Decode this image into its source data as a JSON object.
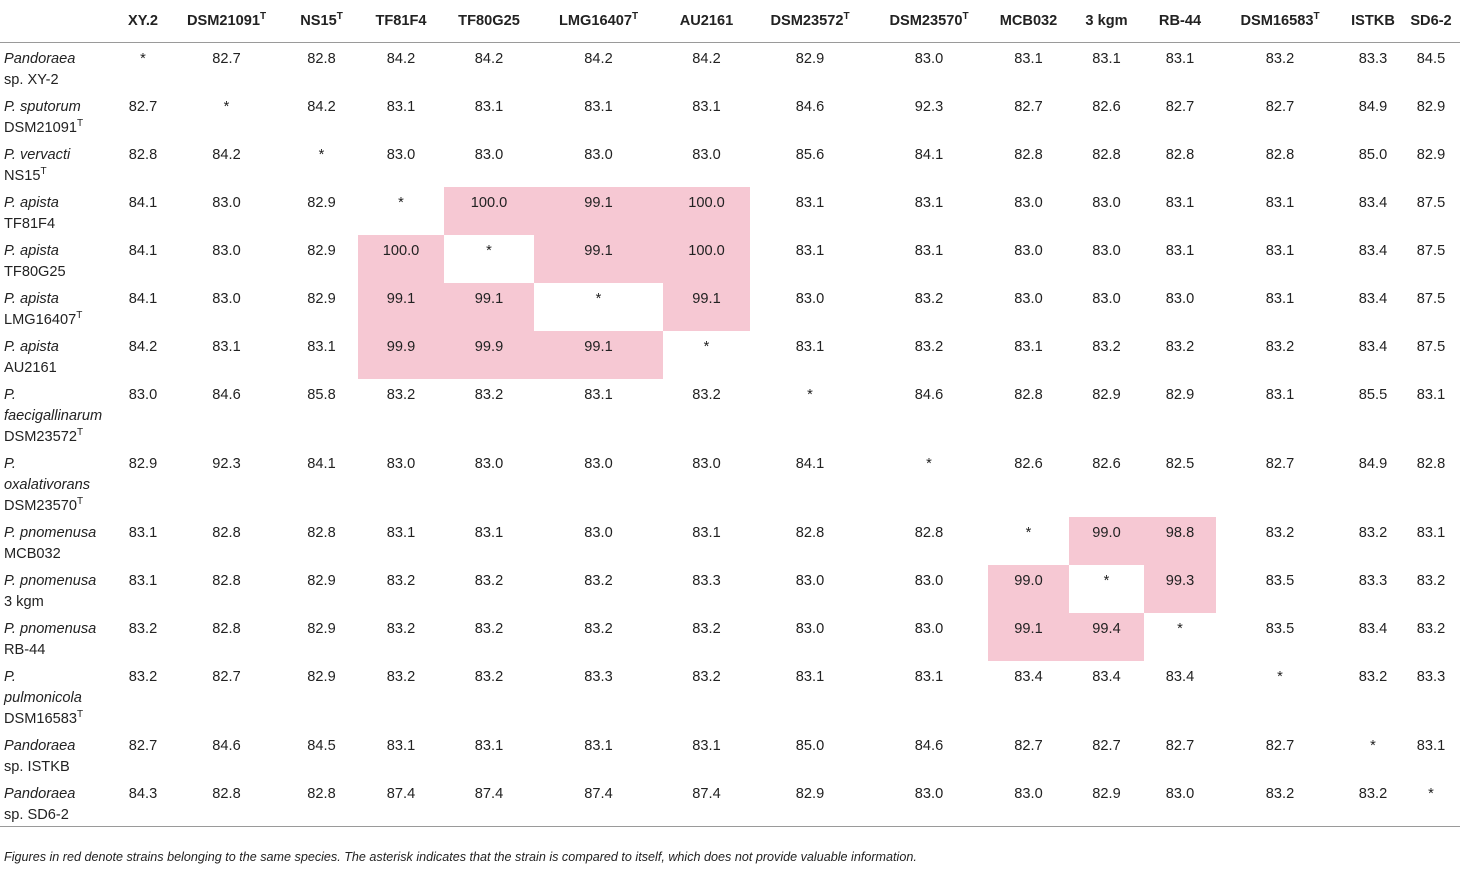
{
  "columns": [
    {
      "label": "XY.2",
      "sup": ""
    },
    {
      "label": "DSM21091",
      "sup": "T"
    },
    {
      "label": "NS15",
      "sup": "T"
    },
    {
      "label": "TF81F4",
      "sup": ""
    },
    {
      "label": "TF80G25",
      "sup": ""
    },
    {
      "label": "LMG16407",
      "sup": "T"
    },
    {
      "label": "AU2161",
      "sup": ""
    },
    {
      "label": "DSM23572",
      "sup": "T"
    },
    {
      "label": "DSM23570",
      "sup": "T"
    },
    {
      "label": "MCB032",
      "sup": ""
    },
    {
      "label": "3 kgm",
      "sup": ""
    },
    {
      "label": "RB-44",
      "sup": ""
    },
    {
      "label": "DSM16583",
      "sup": "T"
    },
    {
      "label": "ISTKB",
      "sup": ""
    },
    {
      "label": "SD6-2",
      "sup": ""
    }
  ],
  "rows": [
    {
      "lines": [
        {
          "italic": "Pandoraea",
          "plain": "",
          "sup": ""
        },
        {
          "italic": "",
          "plain": "sp. XY-2",
          "sup": ""
        }
      ],
      "values": [
        "*",
        "82.7",
        "82.8",
        "84.2",
        "84.2",
        "84.2",
        "84.2",
        "82.9",
        "83.0",
        "83.1",
        "83.1",
        "83.1",
        "83.2",
        "83.3",
        "84.5"
      ]
    },
    {
      "lines": [
        {
          "italic": "P. sputorum",
          "plain": "",
          "sup": ""
        },
        {
          "italic": "",
          "plain": "DSM21091",
          "sup": "T"
        }
      ],
      "values": [
        "82.7",
        "*",
        "84.2",
        "83.1",
        "83.1",
        "83.1",
        "83.1",
        "84.6",
        "92.3",
        "82.7",
        "82.6",
        "82.7",
        "82.7",
        "84.9",
        "82.9"
      ]
    },
    {
      "lines": [
        {
          "italic": "P. vervacti",
          "plain": "",
          "sup": ""
        },
        {
          "italic": "",
          "plain": "NS15",
          "sup": "T"
        }
      ],
      "values": [
        "82.8",
        "84.2",
        "*",
        "83.0",
        "83.0",
        "83.0",
        "83.0",
        "85.6",
        "84.1",
        "82.8",
        "82.8",
        "82.8",
        "82.8",
        "85.0",
        "82.9"
      ]
    },
    {
      "lines": [
        {
          "italic": "P. apista",
          "plain": "",
          "sup": ""
        },
        {
          "italic": "",
          "plain": "TF81F4",
          "sup": ""
        }
      ],
      "values": [
        "84.1",
        "83.0",
        "82.9",
        "*",
        "100.0",
        "99.1",
        "100.0",
        "83.1",
        "83.1",
        "83.0",
        "83.0",
        "83.1",
        "83.1",
        "83.4",
        "87.5"
      ]
    },
    {
      "lines": [
        {
          "italic": "P. apista",
          "plain": "",
          "sup": ""
        },
        {
          "italic": "",
          "plain": "TF80G25",
          "sup": ""
        }
      ],
      "values": [
        "84.1",
        "83.0",
        "82.9",
        "100.0",
        "*",
        "99.1",
        "100.0",
        "83.1",
        "83.1",
        "83.0",
        "83.0",
        "83.1",
        "83.1",
        "83.4",
        "87.5"
      ]
    },
    {
      "lines": [
        {
          "italic": "P. apista",
          "plain": "",
          "sup": ""
        },
        {
          "italic": "",
          "plain": "LMG16407",
          "sup": "T"
        }
      ],
      "values": [
        "84.1",
        "83.0",
        "82.9",
        "99.1",
        "99.1",
        "*",
        "99.1",
        "83.0",
        "83.2",
        "83.0",
        "83.0",
        "83.0",
        "83.1",
        "83.4",
        "87.5"
      ]
    },
    {
      "lines": [
        {
          "italic": "P. apista",
          "plain": "",
          "sup": ""
        },
        {
          "italic": "",
          "plain": "AU2161",
          "sup": ""
        }
      ],
      "values": [
        "84.2",
        "83.1",
        "83.1",
        "99.9",
        "99.9",
        "99.1",
        "*",
        "83.1",
        "83.2",
        "83.1",
        "83.2",
        "83.2",
        "83.2",
        "83.4",
        "87.5"
      ]
    },
    {
      "lines": [
        {
          "italic": "P.",
          "plain": "",
          "sup": ""
        },
        {
          "italic": "faecigallinarum",
          "plain": "",
          "sup": ""
        },
        {
          "italic": "",
          "plain": "DSM23572",
          "sup": "T"
        }
      ],
      "values": [
        "83.0",
        "84.6",
        "85.8",
        "83.2",
        "83.2",
        "83.1",
        "83.2",
        "*",
        "84.6",
        "82.8",
        "82.9",
        "82.9",
        "83.1",
        "85.5",
        "83.1"
      ]
    },
    {
      "lines": [
        {
          "italic": "P.",
          "plain": "",
          "sup": ""
        },
        {
          "italic": "oxalativorans",
          "plain": "",
          "sup": ""
        },
        {
          "italic": "",
          "plain": "DSM23570",
          "sup": "T"
        }
      ],
      "values": [
        "82.9",
        "92.3",
        "84.1",
        "83.0",
        "83.0",
        "83.0",
        "83.0",
        "84.1",
        "*",
        "82.6",
        "82.6",
        "82.5",
        "82.7",
        "84.9",
        "82.8"
      ]
    },
    {
      "lines": [
        {
          "italic": "P. pnomenusa",
          "plain": "",
          "sup": ""
        },
        {
          "italic": "",
          "plain": "MCB032",
          "sup": ""
        }
      ],
      "values": [
        "83.1",
        "82.8",
        "82.8",
        "83.1",
        "83.1",
        "83.0",
        "83.1",
        "82.8",
        "82.8",
        "*",
        "99.0",
        "98.8",
        "83.2",
        "83.2",
        "83.1"
      ]
    },
    {
      "lines": [
        {
          "italic": "P. pnomenusa",
          "plain": "",
          "sup": ""
        },
        {
          "italic": "",
          "plain": "3 kgm",
          "sup": ""
        }
      ],
      "values": [
        "83.1",
        "82.8",
        "82.9",
        "83.2",
        "83.2",
        "83.2",
        "83.3",
        "83.0",
        "83.0",
        "99.0",
        "*",
        "99.3",
        "83.5",
        "83.3",
        "83.2"
      ]
    },
    {
      "lines": [
        {
          "italic": "P. pnomenusa",
          "plain": "",
          "sup": ""
        },
        {
          "italic": "",
          "plain": "RB-44",
          "sup": ""
        }
      ],
      "values": [
        "83.2",
        "82.8",
        "82.9",
        "83.2",
        "83.2",
        "83.2",
        "83.2",
        "83.0",
        "83.0",
        "99.1",
        "99.4",
        "*",
        "83.5",
        "83.4",
        "83.2"
      ]
    },
    {
      "lines": [
        {
          "italic": "P.",
          "plain": "",
          "sup": ""
        },
        {
          "italic": "pulmonicola",
          "plain": "",
          "sup": ""
        },
        {
          "italic": "",
          "plain": "DSM16583",
          "sup": "T"
        }
      ],
      "values": [
        "83.2",
        "82.7",
        "82.9",
        "83.2",
        "83.2",
        "83.3",
        "83.2",
        "83.1",
        "83.1",
        "83.4",
        "83.4",
        "83.4",
        "*",
        "83.2",
        "83.3"
      ]
    },
    {
      "lines": [
        {
          "italic": "Pandoraea",
          "plain": "",
          "sup": ""
        },
        {
          "italic": "",
          "plain": "sp. ISTKB",
          "sup": ""
        }
      ],
      "values": [
        "82.7",
        "84.6",
        "84.5",
        "83.1",
        "83.1",
        "83.1",
        "83.1",
        "85.0",
        "84.6",
        "82.7",
        "82.7",
        "82.7",
        "82.7",
        "*",
        "83.1"
      ]
    },
    {
      "lines": [
        {
          "italic": "Pandoraea",
          "plain": "",
          "sup": ""
        },
        {
          "italic": "",
          "plain": "sp. SD6-2",
          "sup": ""
        }
      ],
      "values": [
        "84.3",
        "82.8",
        "82.8",
        "87.4",
        "87.4",
        "87.4",
        "87.4",
        "82.9",
        "83.0",
        "83.0",
        "82.9",
        "83.0",
        "83.2",
        "83.2",
        "*"
      ]
    }
  ],
  "highlight_color": "#f6c8d3",
  "highlighted_cells": [
    [
      3,
      4
    ],
    [
      3,
      5
    ],
    [
      3,
      6
    ],
    [
      4,
      3
    ],
    [
      4,
      5
    ],
    [
      4,
      6
    ],
    [
      5,
      3
    ],
    [
      5,
      4
    ],
    [
      5,
      6
    ],
    [
      6,
      3
    ],
    [
      6,
      4
    ],
    [
      6,
      5
    ],
    [
      9,
      10
    ],
    [
      9,
      11
    ],
    [
      10,
      9
    ],
    [
      10,
      11
    ],
    [
      11,
      9
    ],
    [
      11,
      10
    ]
  ],
  "footnote": "Figures in red denote strains belonging to the same species. The asterisk indicates that the strain is compared to itself, which does not provide valuable information."
}
